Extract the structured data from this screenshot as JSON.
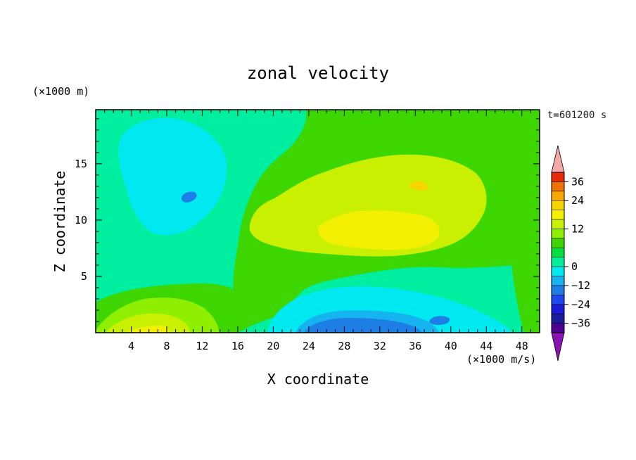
{
  "chart_data": {
    "type": "contour",
    "title": "zonal velocity",
    "xlabel": "X coordinate",
    "ylabel": "Z coordinate",
    "y_unit_label": "(×1000 m)",
    "colorbar_unit_label": "(×1000 m/s)",
    "time_label": "t=601200 s",
    "xlim": [
      0,
      50
    ],
    "ylim": [
      0,
      19.8
    ],
    "x_ticks": [
      4,
      8,
      12,
      16,
      20,
      24,
      28,
      32,
      36,
      40,
      44,
      48
    ],
    "y_ticks": [
      5,
      10,
      15
    ],
    "x_tick_labels": [
      "4",
      "8",
      "12",
      "16",
      "20",
      "24",
      "28",
      "32",
      "36",
      "40",
      "44",
      "48"
    ],
    "y_tick_labels": [
      "5",
      "10",
      "15"
    ],
    "colorbar": {
      "levels": [
        -42,
        -36,
        -30,
        -24,
        -18,
        -12,
        -6,
        0,
        3,
        6,
        9,
        12,
        15,
        18,
        24,
        30,
        36,
        42
      ],
      "colors": [
        "#4b0090",
        "#1c1c9e",
        "#1a1ad8",
        "#1d48f0",
        "#1d7fe6",
        "#15b4f0",
        "#00e8f0",
        "#00eea0",
        "#00e040",
        "#3ed600",
        "#8ef000",
        "#c8f000",
        "#f2f000",
        "#f6d400",
        "#f8a800",
        "#f07000",
        "#e82a0a"
      ],
      "under_color": "#8a14b0",
      "over_color": "#f4a8a8",
      "tick_values": [
        36,
        24,
        12,
        0,
        -12,
        -24,
        -36
      ],
      "tick_labels": [
        "36",
        "24",
        "12",
        "0",
        "−12",
        "−24",
        "−36"
      ]
    },
    "field_features": [
      {
        "x": 10,
        "z": 14,
        "u": -11,
        "desc": "upper-left negative core"
      },
      {
        "x": 10,
        "z": 12.2,
        "u": -17,
        "desc": "small embedded minimum"
      },
      {
        "x": 34,
        "z": 10,
        "u": 10.5,
        "desc": "mid-level positive jet"
      },
      {
        "x": 36,
        "z": 13,
        "u": 14,
        "desc": "small maximum"
      },
      {
        "x": 32,
        "z": 0.8,
        "u": -17,
        "desc": "near-surface negative core"
      },
      {
        "x": 7,
        "z": 1.2,
        "u": 8,
        "desc": "near-surface positive lobe"
      },
      {
        "x": 46,
        "z": 14,
        "u": 2,
        "desc": "right-side positive band"
      }
    ]
  }
}
